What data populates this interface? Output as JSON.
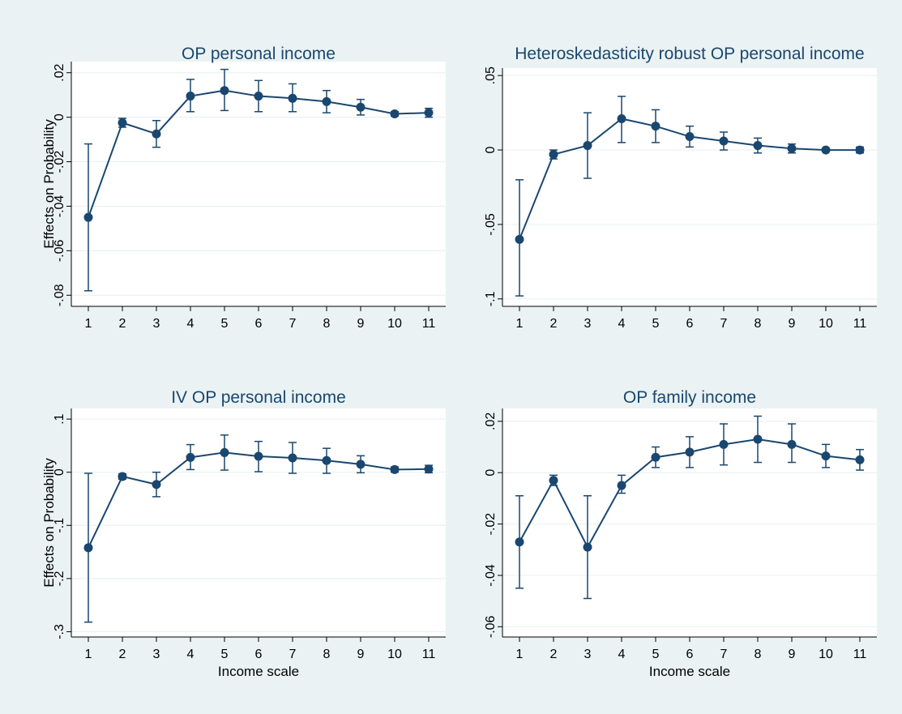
{
  "colors": {
    "background": "#eaf2f3",
    "plot_background": "#ffffff",
    "series": "#1a476f",
    "title": "#1a476f",
    "grid": "#eaf2f3",
    "axis": "#000000"
  },
  "icons": {
    "marker": "filled-circle",
    "error_bar": "capped-line"
  },
  "chart_data": [
    {
      "type": "line",
      "title": "OP personal income",
      "xlabel": "",
      "ylabel": "Effects on Probability",
      "x": [
        1,
        2,
        3,
        4,
        5,
        6,
        7,
        8,
        9,
        10,
        11
      ],
      "xticks": [
        "1",
        "2",
        "3",
        "4",
        "5",
        "6",
        "7",
        "8",
        "9",
        "10",
        "11"
      ],
      "ylim": [
        -0.085,
        0.025
      ],
      "yticks": [
        0.02,
        0,
        -0.02,
        -0.04,
        -0.06,
        -0.08
      ],
      "ytick_labels": [
        ".02",
        "0",
        "-.02",
        "-.04",
        "-.06",
        "-.08"
      ],
      "grid": true,
      "error_bars": true,
      "series": [
        {
          "values": [
            -0.045,
            -0.0025,
            -0.0075,
            0.0095,
            0.012,
            0.0095,
            0.0085,
            0.007,
            0.0045,
            0.0015,
            0.002
          ],
          "lower": [
            -0.078,
            -0.0045,
            -0.0135,
            0.0025,
            0.003,
            0.0025,
            0.0025,
            0.002,
            0.001,
            0.0005,
            0.0
          ],
          "upper": [
            -0.012,
            -0.0005,
            -0.0015,
            0.017,
            0.0215,
            0.0165,
            0.015,
            0.012,
            0.008,
            0.0025,
            0.004
          ]
        }
      ]
    },
    {
      "type": "line",
      "title": "Heteroskedasticity robust OP personal income",
      "xlabel": "",
      "ylabel": "",
      "x": [
        1,
        2,
        3,
        4,
        5,
        6,
        7,
        8,
        9,
        10,
        11
      ],
      "xticks": [
        "1",
        "2",
        "3",
        "4",
        "5",
        "6",
        "7",
        "8",
        "9",
        "10",
        "11"
      ],
      "ylim": [
        -0.105,
        0.055
      ],
      "yticks": [
        0.05,
        0,
        -0.05,
        -0.1
      ],
      "ytick_labels": [
        ".05",
        "0",
        "-.05",
        "-.1"
      ],
      "grid": true,
      "error_bars": true,
      "series": [
        {
          "values": [
            -0.06,
            -0.003,
            0.003,
            0.021,
            0.016,
            0.009,
            0.006,
            0.003,
            0.001,
            0.0,
            0.0
          ],
          "lower": [
            -0.098,
            -0.006,
            -0.019,
            0.005,
            0.005,
            0.002,
            0.0,
            -0.002,
            -0.002,
            -0.001,
            -0.002
          ],
          "upper": [
            -0.02,
            0.0,
            0.025,
            0.036,
            0.027,
            0.016,
            0.012,
            0.008,
            0.004,
            0.001,
            0.002
          ]
        }
      ]
    },
    {
      "type": "line",
      "title": "IV OP personal income",
      "xlabel": "Income scale",
      "ylabel": "Effects on Probability",
      "x": [
        1,
        2,
        3,
        4,
        5,
        6,
        7,
        8,
        9,
        10,
        11
      ],
      "xticks": [
        "1",
        "2",
        "3",
        "4",
        "5",
        "6",
        "7",
        "8",
        "9",
        "10",
        "11"
      ],
      "ylim": [
        -0.31,
        0.12
      ],
      "yticks": [
        0.1,
        0,
        -0.1,
        -0.2,
        -0.3
      ],
      "ytick_labels": [
        ".1",
        "0",
        "-.1",
        "-.2",
        "-.3"
      ],
      "grid": true,
      "error_bars": true,
      "series": [
        {
          "values": [
            -0.142,
            -0.008,
            -0.023,
            0.028,
            0.037,
            0.03,
            0.027,
            0.022,
            0.015,
            0.005,
            0.006
          ],
          "lower": [
            -0.282,
            -0.013,
            -0.046,
            0.005,
            0.004,
            0.001,
            -0.002,
            -0.002,
            -0.001,
            0.0,
            -0.001
          ],
          "upper": [
            -0.002,
            -0.003,
            0.0,
            0.052,
            0.07,
            0.058,
            0.056,
            0.045,
            0.031,
            0.01,
            0.013
          ]
        }
      ]
    },
    {
      "type": "line",
      "title": "OP family income",
      "xlabel": "Income scale",
      "ylabel": "",
      "x": [
        1,
        2,
        3,
        4,
        5,
        6,
        7,
        8,
        9,
        10,
        11
      ],
      "xticks": [
        "1",
        "2",
        "3",
        "4",
        "5",
        "6",
        "7",
        "8",
        "9",
        "10",
        "11"
      ],
      "ylim": [
        -0.064,
        0.025
      ],
      "yticks": [
        0.02,
        0,
        -0.02,
        -0.04,
        -0.06
      ],
      "ytick_labels": [
        ".02",
        "0",
        "-.02",
        "-.04",
        "-.06"
      ],
      "grid": true,
      "error_bars": true,
      "series": [
        {
          "values": [
            -0.027,
            -0.003,
            -0.029,
            -0.005,
            0.006,
            0.008,
            0.011,
            0.013,
            0.011,
            0.0065,
            0.005
          ],
          "lower": [
            -0.045,
            -0.005,
            -0.049,
            -0.008,
            0.002,
            0.002,
            0.003,
            0.004,
            0.004,
            0.002,
            0.001
          ],
          "upper": [
            -0.009,
            -0.001,
            -0.009,
            -0.001,
            0.01,
            0.014,
            0.019,
            0.022,
            0.019,
            0.011,
            0.009
          ]
        }
      ]
    }
  ]
}
